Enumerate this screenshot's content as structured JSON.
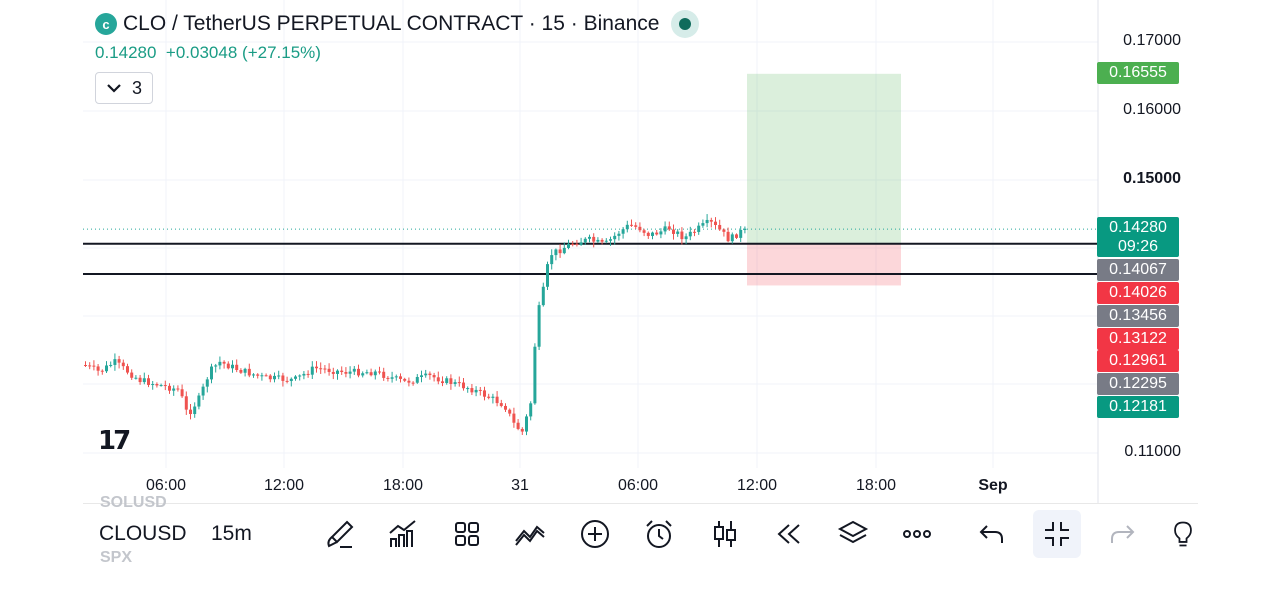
{
  "header": {
    "logo_glyph": "c",
    "title": "CLO / TetherUS PERPETUAL CONTRACT · 15 · Binance",
    "last_price": "0.14280",
    "change": "+0.03048",
    "change_pct": "(+27.15%)",
    "indicator_count": "3"
  },
  "price_axis": {
    "ticks": [
      "0.17000",
      "0.16000",
      "0.15000",
      "0.11000"
    ],
    "bold_tick": "0.15000"
  },
  "price_tags": [
    {
      "label": "0.16555",
      "color": "#4caf50"
    },
    {
      "label": "0.14280",
      "sub": "09:26",
      "color": "#089981"
    },
    {
      "label": "0.14067",
      "color": "#787b86"
    },
    {
      "label": "0.14026",
      "color": "#f23645"
    },
    {
      "label": "0.13456",
      "color": "#787b86"
    },
    {
      "label": "0.13122",
      "color": "#f23645"
    },
    {
      "label": "0.12961",
      "color": "#f23645"
    },
    {
      "label": "0.12295",
      "color": "#787b86"
    },
    {
      "label": "0.12181",
      "color": "#089981"
    }
  ],
  "time_axis": [
    "06:00",
    "12:00",
    "18:00",
    "31",
    "06:00",
    "12:00",
    "18:00",
    "Sep"
  ],
  "levels": {
    "horizontal_lines": [
      0.14067,
      0.13623
    ],
    "current_price": 0.1428,
    "position": {
      "entry": 0.14067,
      "target": 0.16555,
      "stop": 0.13456
    }
  },
  "candle_colors": {
    "up": "#26a69a",
    "down": "#ef5350"
  },
  "toolbar": {
    "ghost_above": "SOLUSD",
    "symbol": "CLOUSD",
    "ghost_below": "SPX",
    "interval": "15m",
    "tools": [
      "brush-icon",
      "chart-bars-icon",
      "grid-icon",
      "trend-icon",
      "plus-circle-icon",
      "alarm-icon",
      "candles-icon",
      "rewind-icon",
      "layers-icon",
      "more-icon",
      "undo-icon",
      "collapse-icon",
      "redo-icon",
      "bulb-icon"
    ]
  }
}
